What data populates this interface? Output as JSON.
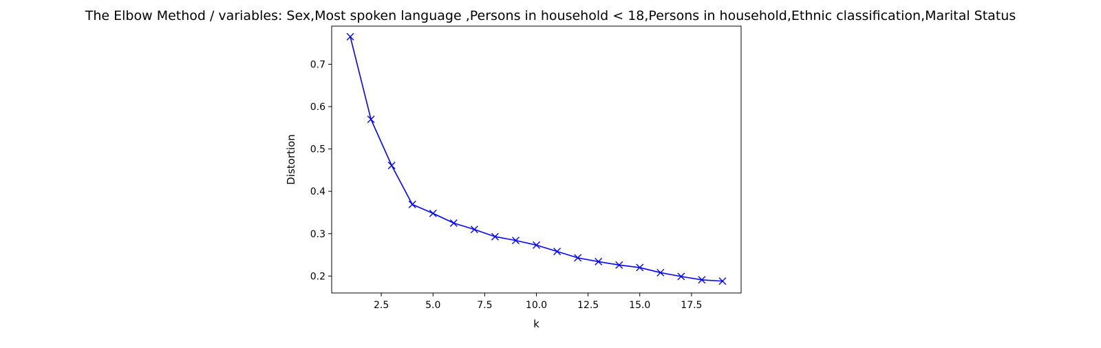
{
  "chart_data": {
    "type": "line",
    "title": "The Elbow Method / variables: Sex,Most spoken language ,Persons in household < 18,Persons in household,Ethnic classification,Marital Status",
    "xlabel": "k",
    "ylabel": "Distortion",
    "xlim": [
      0.1,
      19.9
    ],
    "ylim": [
      0.16,
      0.79
    ],
    "x_ticks": [
      2.5,
      5.0,
      7.5,
      10.0,
      12.5,
      15.0,
      17.5
    ],
    "x_tick_labels": [
      "2.5",
      "5.0",
      "7.5",
      "10.0",
      "12.5",
      "15.0",
      "17.5"
    ],
    "y_ticks": [
      0.2,
      0.3,
      0.4,
      0.5,
      0.6,
      0.7
    ],
    "y_tick_labels": [
      "0.2",
      "0.3",
      "0.4",
      "0.5",
      "0.6",
      "0.7"
    ],
    "grid": false,
    "series": [
      {
        "color": "#0000ff",
        "marker": "x",
        "x": [
          1,
          2,
          3,
          4,
          5,
          6,
          7,
          8,
          9,
          10,
          11,
          12,
          13,
          14,
          15,
          16,
          17,
          18,
          19
        ],
        "y": [
          0.765,
          0.57,
          0.461,
          0.369,
          0.348,
          0.325,
          0.31,
          0.293,
          0.284,
          0.273,
          0.258,
          0.243,
          0.234,
          0.226,
          0.22,
          0.208,
          0.199,
          0.191,
          0.188
        ]
      }
    ]
  }
}
